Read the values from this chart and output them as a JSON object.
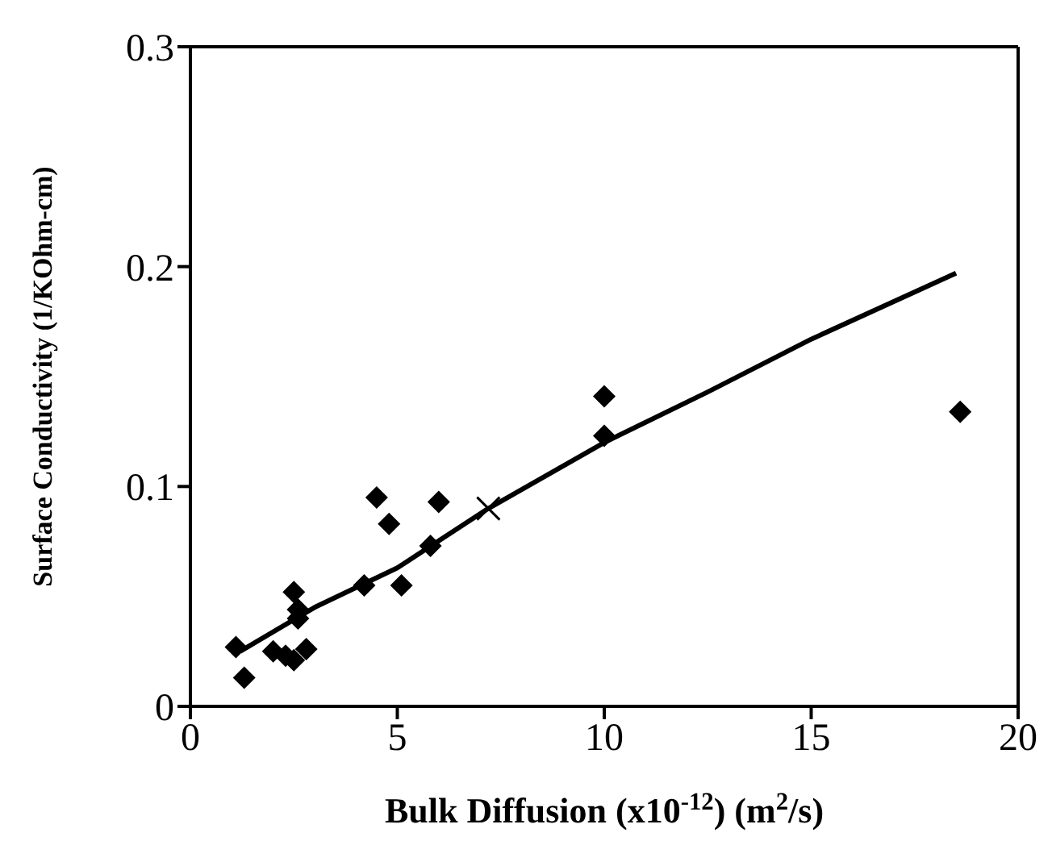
{
  "chart_data": {
    "type": "scatter",
    "xlabel": "Bulk Diffusion (x10$^{-12}$) (m$^{2}$/s)",
    "ylabel": "Surface Conductivity (1/KOhm-cm)",
    "xlim": [
      0,
      20
    ],
    "xticks": [
      0,
      5,
      10,
      15,
      20
    ],
    "ylim": [
      0,
      0.3
    ],
    "yticks": [
      0,
      0.1,
      0.2,
      0.3
    ],
    "legend": false,
    "series": [
      {
        "marker": "diamond",
        "color": "#000000",
        "x": [
          1.1,
          1.3,
          2.0,
          2.3,
          2.5,
          2.6,
          2.5,
          2.8,
          2.6,
          4.2,
          4.5,
          4.8,
          5.1,
          5.8,
          6.0,
          10.0,
          10.0,
          18.6
        ],
        "values": [
          0.027,
          0.013,
          0.025,
          0.023,
          0.052,
          0.044,
          0.021,
          0.026,
          0.04,
          0.055,
          0.095,
          0.083,
          0.055,
          0.073,
          0.093,
          0.141,
          0.123,
          0.134
        ]
      },
      {
        "type": "line",
        "marker": "none",
        "line_style": "solid",
        "color": "#000000",
        "x": [
          1.2,
          3,
          5,
          7.2,
          10,
          12.5,
          15,
          18.5
        ],
        "values": [
          0.025,
          0.045,
          0.063,
          0.09,
          0.12,
          0.143,
          0.167,
          0.197
        ]
      },
      {
        "marker": "cross",
        "color": "#000000",
        "x": [
          7.2
        ],
        "values": [
          0.09
        ]
      }
    ]
  }
}
